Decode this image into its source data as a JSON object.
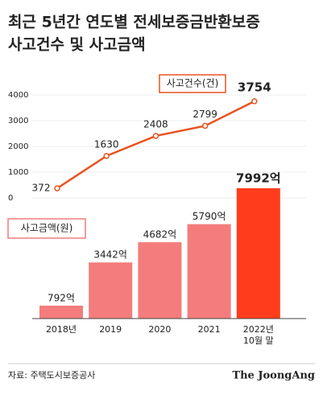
{
  "chart_data": {
    "type": "bar",
    "title": [
      "최근 5년간 연도별 전세보증금반환보증",
      "사고건수 및 사고금액"
    ],
    "categories": [
      "2018년",
      "2019",
      "2020",
      "2021",
      "2022년\n10월 말"
    ],
    "ylim": [
      0,
      4000
    ],
    "yticks": [
      0,
      1000,
      2000,
      3000,
      4000
    ],
    "grid": true,
    "series": [
      {
        "name": "사고건수(건)",
        "type": "line",
        "color": "#e8531f",
        "values": [
          372,
          1630,
          2408,
          2799,
          3754
        ]
      },
      {
        "name": "사고금액(원)",
        "type": "bar",
        "axis": "y2",
        "colors": [
          "#f47c7c",
          "#f47c7c",
          "#f47c7c",
          "#f47c7c",
          "#ff3d1c"
        ],
        "values": [
          792,
          3442,
          4682,
          5790,
          7992
        ],
        "value_labels": [
          "792억",
          "3442억",
          "4682억",
          "5790억",
          "7992억"
        ]
      }
    ],
    "source": "자료: 주택도시보증공사",
    "brand": "The JoongAng"
  }
}
